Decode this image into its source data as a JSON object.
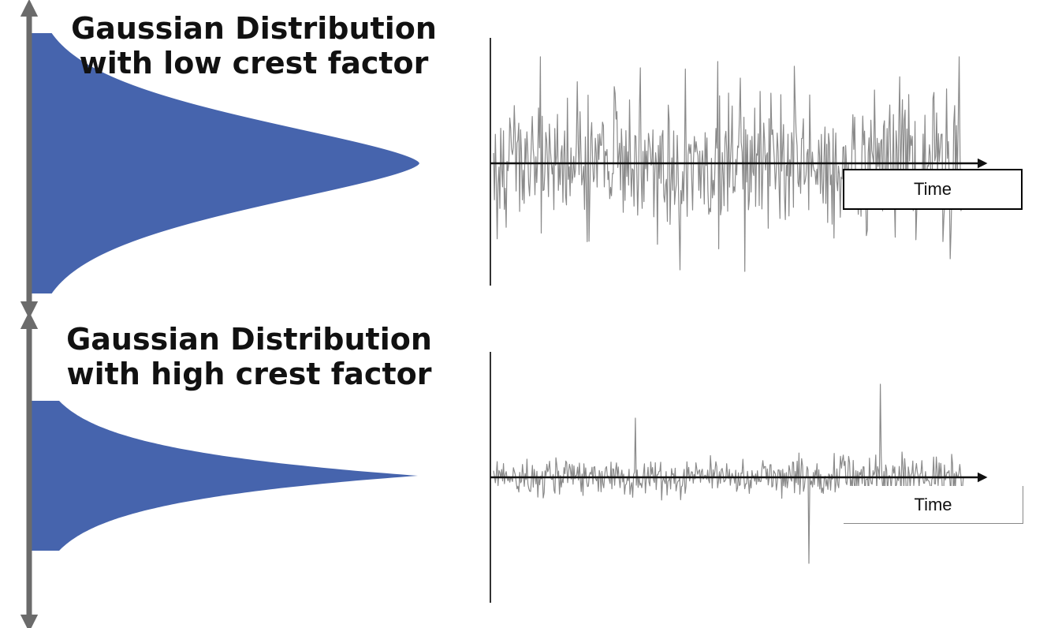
{
  "panels": [
    {
      "id": "low",
      "title_line1": "Gaussian Distribution",
      "title_line2": "with low crest factor",
      "time_label": "Time",
      "crest_factor": "low"
    },
    {
      "id": "high",
      "title_line1": "Gaussian Distribution",
      "title_line2": "with high crest factor",
      "time_label": "Time",
      "crest_factor": "high"
    }
  ],
  "colors": {
    "distribution_fill": "#4664ad",
    "amplitude_axis": "#6b6b6b",
    "signal_trace": "#8a8a8a",
    "time_axis": "#111111"
  }
}
